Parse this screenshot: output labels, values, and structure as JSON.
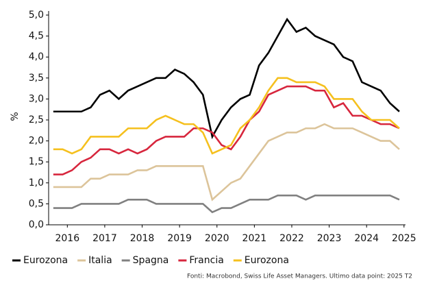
{
  "chart_data": {
    "type": "line",
    "ylabel": "%",
    "note": "Fonti: Macrobond, Swiss Life Asset Managers. Ultimo data point: 2025 T2",
    "x": [
      2016.125,
      2016.375,
      2016.625,
      2016.875,
      2017.125,
      2017.375,
      2017.625,
      2017.875,
      2018.125,
      2018.375,
      2018.625,
      2018.875,
      2019.125,
      2019.375,
      2019.625,
      2019.875,
      2020.125,
      2020.375,
      2020.625,
      2020.875,
      2021.125,
      2021.375,
      2021.625,
      2021.875,
      2022.125,
      2022.375,
      2022.625,
      2022.875,
      2023.125,
      2023.375,
      2023.625,
      2023.875,
      2024.125,
      2024.375,
      2024.625,
      2024.875,
      2025.125,
      2025.375
    ],
    "xlim": [
      2016.0,
      2025.65
    ],
    "xticks": [
      {
        "value": 2016.5,
        "label": "2016"
      },
      {
        "value": 2017.5,
        "label": "2017"
      },
      {
        "value": 2018.5,
        "label": "2018"
      },
      {
        "value": 2019.5,
        "label": "2019"
      },
      {
        "value": 2020.5,
        "label": "2020"
      },
      {
        "value": 2021.5,
        "label": "2021"
      },
      {
        "value": 2022.5,
        "label": "2022"
      },
      {
        "value": 2023.5,
        "label": "2023"
      },
      {
        "value": 2024.5,
        "label": "2024"
      },
      {
        "value": 2025.5,
        "label": "2025"
      }
    ],
    "ylim": [
      0,
      5
    ],
    "yticks": [
      {
        "value": 0,
        "label": "0,0"
      },
      {
        "value": 0.5,
        "label": "0,5"
      },
      {
        "value": 1,
        "label": "1,0"
      },
      {
        "value": 1.5,
        "label": "1,5"
      },
      {
        "value": 2,
        "label": "2,0"
      },
      {
        "value": 2.5,
        "label": "2,5"
      },
      {
        "value": 3,
        "label": "3,0"
      },
      {
        "value": 3.5,
        "label": "3,5"
      },
      {
        "value": 4,
        "label": "4,0"
      },
      {
        "value": 4.5,
        "label": "4,5"
      },
      {
        "value": 5,
        "label": "5,0"
      }
    ],
    "grid": false,
    "legend": "bottom",
    "series": [
      {
        "name": "Eurozona",
        "color": "#000000",
        "values": [
          2.7,
          2.7,
          2.7,
          2.7,
          2.8,
          3.1,
          3.2,
          3.0,
          3.2,
          3.3,
          3.4,
          3.5,
          3.5,
          3.7,
          3.6,
          3.4,
          3.1,
          2.1,
          2.5,
          2.8,
          3.0,
          3.1,
          3.8,
          4.1,
          4.5,
          4.9,
          4.6,
          4.7,
          4.5,
          4.4,
          4.3,
          4.0,
          3.9,
          3.4,
          3.3,
          3.2,
          2.9,
          2.7
        ]
      },
      {
        "name": "Italia",
        "color": "#dcc49a",
        "values": [
          0.9,
          0.9,
          0.9,
          0.9,
          1.1,
          1.1,
          1.2,
          1.2,
          1.2,
          1.3,
          1.3,
          1.4,
          1.4,
          1.4,
          1.4,
          1.4,
          1.4,
          0.6,
          0.8,
          1.0,
          1.1,
          1.4,
          1.7,
          2.0,
          2.1,
          2.2,
          2.2,
          2.3,
          2.3,
          2.4,
          2.3,
          2.3,
          2.3,
          2.2,
          2.1,
          2.0,
          2.0,
          1.8
        ]
      },
      {
        "name": "Spagna",
        "color": "#808080",
        "values": [
          0.4,
          0.4,
          0.4,
          0.5,
          0.5,
          0.5,
          0.5,
          0.5,
          0.6,
          0.6,
          0.6,
          0.5,
          0.5,
          0.5,
          0.5,
          0.5,
          0.5,
          0.3,
          0.4,
          0.4,
          0.5,
          0.6,
          0.6,
          0.6,
          0.7,
          0.7,
          0.7,
          0.6,
          0.7,
          0.7,
          0.7,
          0.7,
          0.7,
          0.7,
          0.7,
          0.7,
          0.7,
          0.6
        ]
      },
      {
        "name": "Francia",
        "color": "#d7263d",
        "values": [
          1.2,
          1.2,
          1.3,
          1.5,
          1.6,
          1.8,
          1.8,
          1.7,
          1.8,
          1.7,
          1.8,
          2.0,
          2.1,
          2.1,
          2.1,
          2.3,
          2.3,
          2.2,
          1.9,
          1.8,
          2.1,
          2.5,
          2.7,
          3.1,
          3.2,
          3.3,
          3.3,
          3.3,
          3.2,
          3.2,
          2.8,
          2.9,
          2.6,
          2.6,
          2.5,
          2.4,
          2.4,
          2.3
        ]
      },
      {
        "name": "Eurozona",
        "color": "#f5c01e",
        "values": [
          1.8,
          1.8,
          1.7,
          1.8,
          2.1,
          2.1,
          2.1,
          2.1,
          2.3,
          2.3,
          2.3,
          2.5,
          2.6,
          2.5,
          2.4,
          2.4,
          2.2,
          1.7,
          1.8,
          1.9,
          2.3,
          2.5,
          2.8,
          3.2,
          3.5,
          3.5,
          3.4,
          3.4,
          3.4,
          3.3,
          3.0,
          3.0,
          3.0,
          2.7,
          2.5,
          2.5,
          2.5,
          2.3
        ]
      }
    ]
  }
}
